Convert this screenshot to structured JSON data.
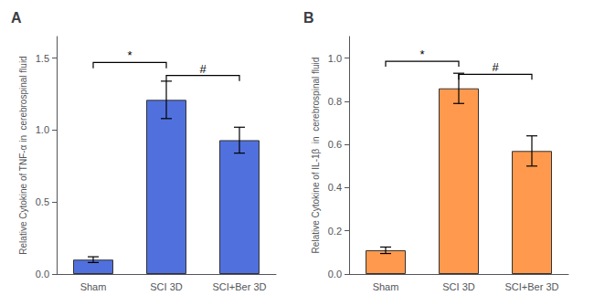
{
  "chart_data": [
    {
      "type": "bar",
      "title": "A",
      "categories": [
        "Sham",
        "SCI 3D",
        "SCI+Ber 3D"
      ],
      "values": [
        0.1,
        1.21,
        0.93
      ],
      "errors": [
        0.02,
        0.13,
        0.09
      ],
      "ylabel": "Relative Cytokine of TNF-α in  cerebrospinal fluid",
      "ylim": [
        0,
        1.65
      ],
      "yticks": [
        {
          "value": 0.0,
          "label": "0.0"
        },
        0.5,
        {
          "value": 1.0,
          "label": "1.0"
        },
        1.5
      ],
      "annotations": [
        {
          "text": "*",
          "x": [
            "Sham",
            "SCI 3D"
          ],
          "y": 1.47,
          "drop": 0.04
        },
        {
          "text": "#",
          "x": [
            "SCI 3D",
            "SCI+Ber 3D"
          ],
          "y": 1.38,
          "drop": 0.04
        }
      ],
      "grid": false
    },
    {
      "type": "bar",
      "title": "B",
      "categories": [
        "Sham",
        "SCI 3D",
        "SCI+Ber 3D"
      ],
      "values": [
        0.11,
        0.86,
        0.57
      ],
      "errors": [
        0.015,
        0.07,
        0.07
      ],
      "ylabel": "Relative Cytokine of IL-1β  in  cerebrospinal fluid",
      "ylim": [
        0,
        1.1
      ],
      "yticks": [
        {
          "value": 0.0,
          "label": "0.0"
        },
        0.2,
        0.4,
        0.6,
        0.8,
        {
          "value": 1.0,
          "label": "1.0"
        }
      ],
      "annotations": [
        {
          "text": "*",
          "x": [
            "Sham",
            "SCI 3D"
          ],
          "y": 0.985,
          "drop": 0.025
        },
        {
          "text": "#",
          "x": [
            "SCI 3D",
            "SCI+Ber 3D"
          ],
          "y": 0.925,
          "drop": 0.025
        }
      ],
      "grid": false
    }
  ]
}
